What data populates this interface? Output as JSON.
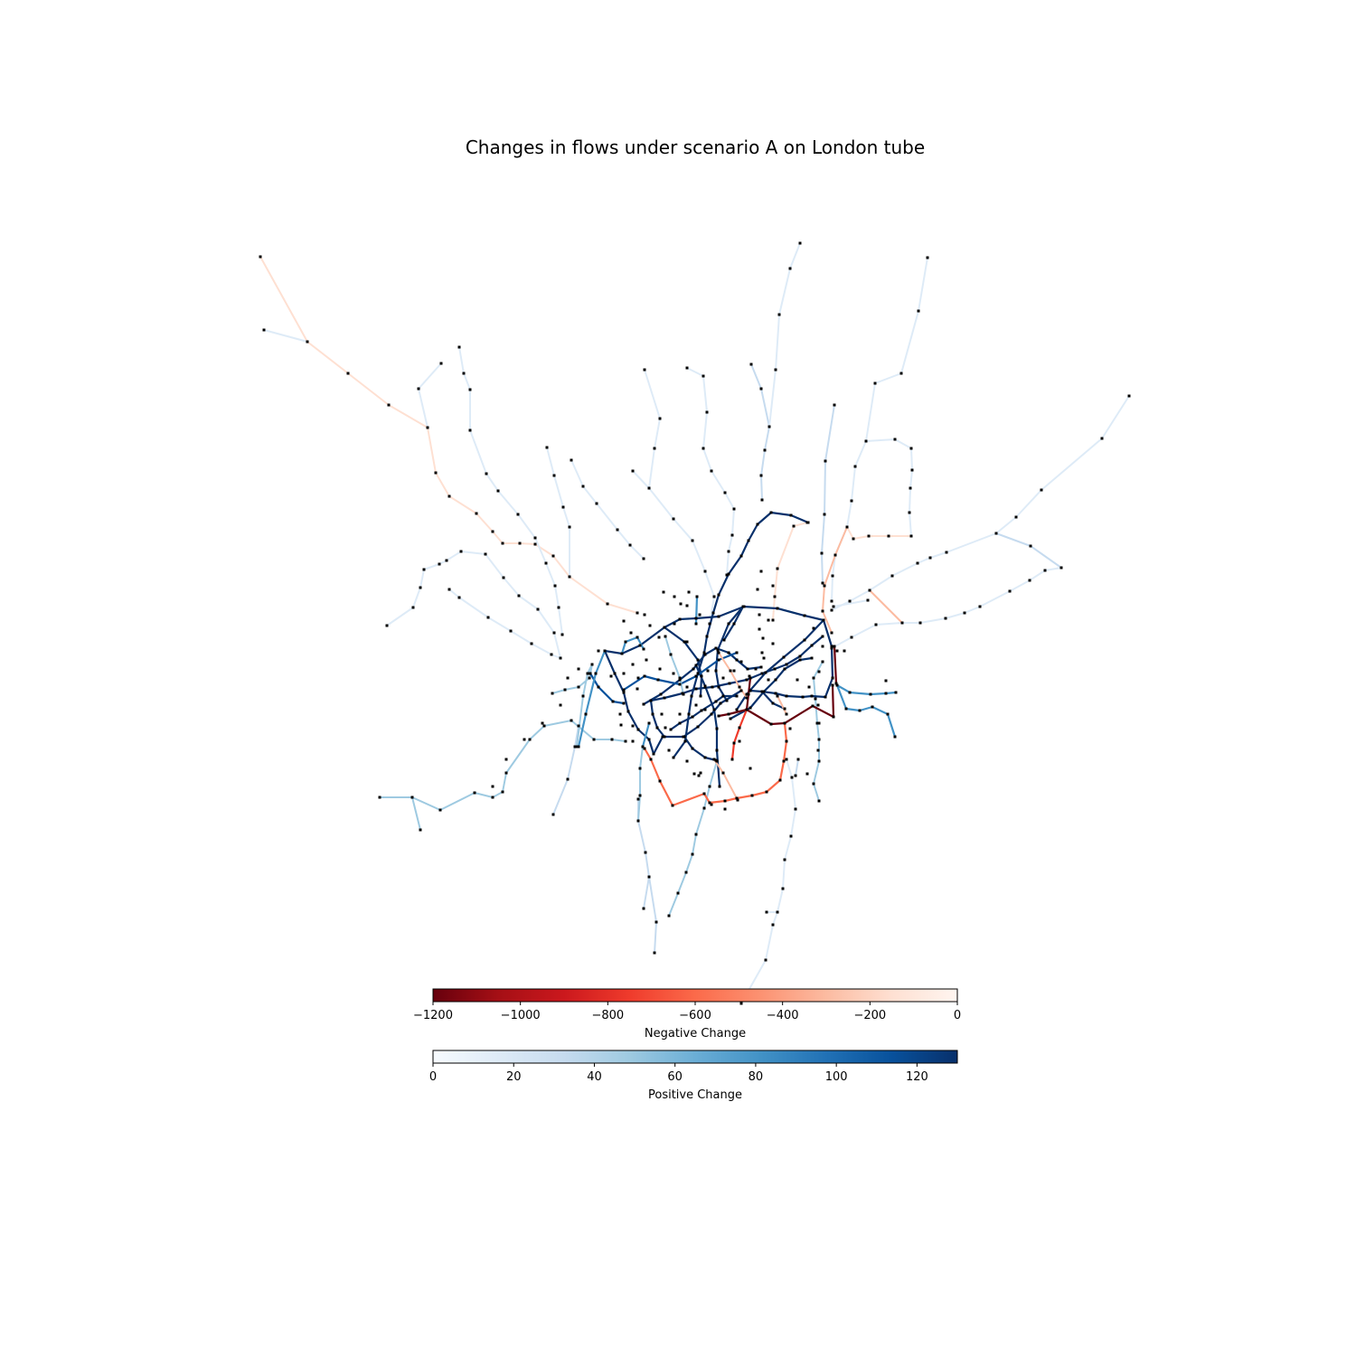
{
  "chart_data": {
    "type": "network",
    "title": "Changes in flows under scenario A on London tube",
    "colorbars": [
      {
        "label": "Negative Change",
        "colormap": "Reds_r",
        "min": -1200,
        "max": 0,
        "ticks": [
          -1200,
          -1000,
          -800,
          -600,
          -400,
          -200,
          0
        ],
        "tick_labels": [
          "−1200",
          "−1000",
          "−800",
          "−600",
          "−400",
          "−200",
          "0"
        ]
      },
      {
        "label": "Positive Change",
        "colormap": "Blues",
        "min": 0,
        "max": 130,
        "ticks": [
          0,
          20,
          40,
          60,
          80,
          100,
          120
        ],
        "tick_labels": [
          "0",
          "20",
          "40",
          "60",
          "80",
          "100",
          "120"
        ]
      }
    ],
    "edge_style": "colored by change in flow (negative: Reds, positive: Blues)",
    "node_style": "small black dots for stations"
  }
}
